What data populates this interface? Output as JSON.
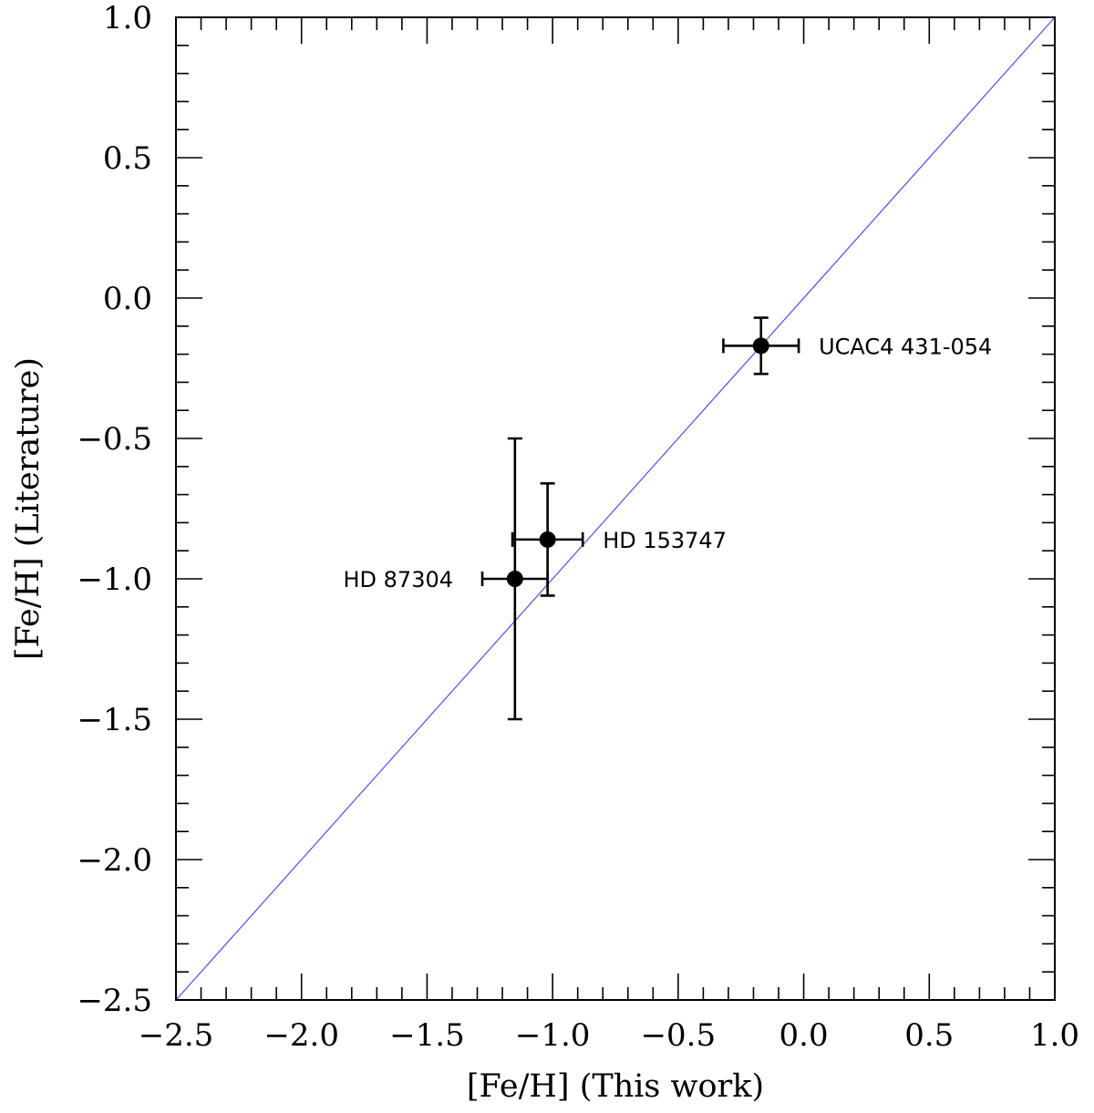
{
  "chart_data": {
    "type": "scatter",
    "xlabel": "[Fe/H] (This work)",
    "ylabel": "[Fe/H] (Literature)",
    "xlim": [
      -2.5,
      1.0
    ],
    "ylim": [
      -2.5,
      1.0
    ],
    "x_ticks": [
      "−2.5",
      "−2.0",
      "−1.5",
      "−1.0",
      "−0.5",
      "0.0",
      "0.5",
      "1.0"
    ],
    "y_ticks": [
      "−2.5",
      "−2.0",
      "−1.5",
      "−1.0",
      "−0.5",
      "0.0",
      "0.5",
      "1.0"
    ],
    "grid": false,
    "reference_line": {
      "type": "one-to-one",
      "color": "#4d4dff"
    },
    "points": [
      {
        "label": "UCAC4 431-054",
        "x": -0.17,
        "y": -0.17,
        "xerr": 0.15,
        "yerr": 0.1,
        "label_side": "right"
      },
      {
        "label": "HD 153747",
        "x": -1.02,
        "y": -0.86,
        "xerr": 0.14,
        "yerr": 0.2,
        "label_side": "right"
      },
      {
        "label": "HD 87304",
        "x": -1.15,
        "y": -1.0,
        "xerr": 0.13,
        "yerr": 0.5,
        "label_side": "left"
      }
    ]
  }
}
